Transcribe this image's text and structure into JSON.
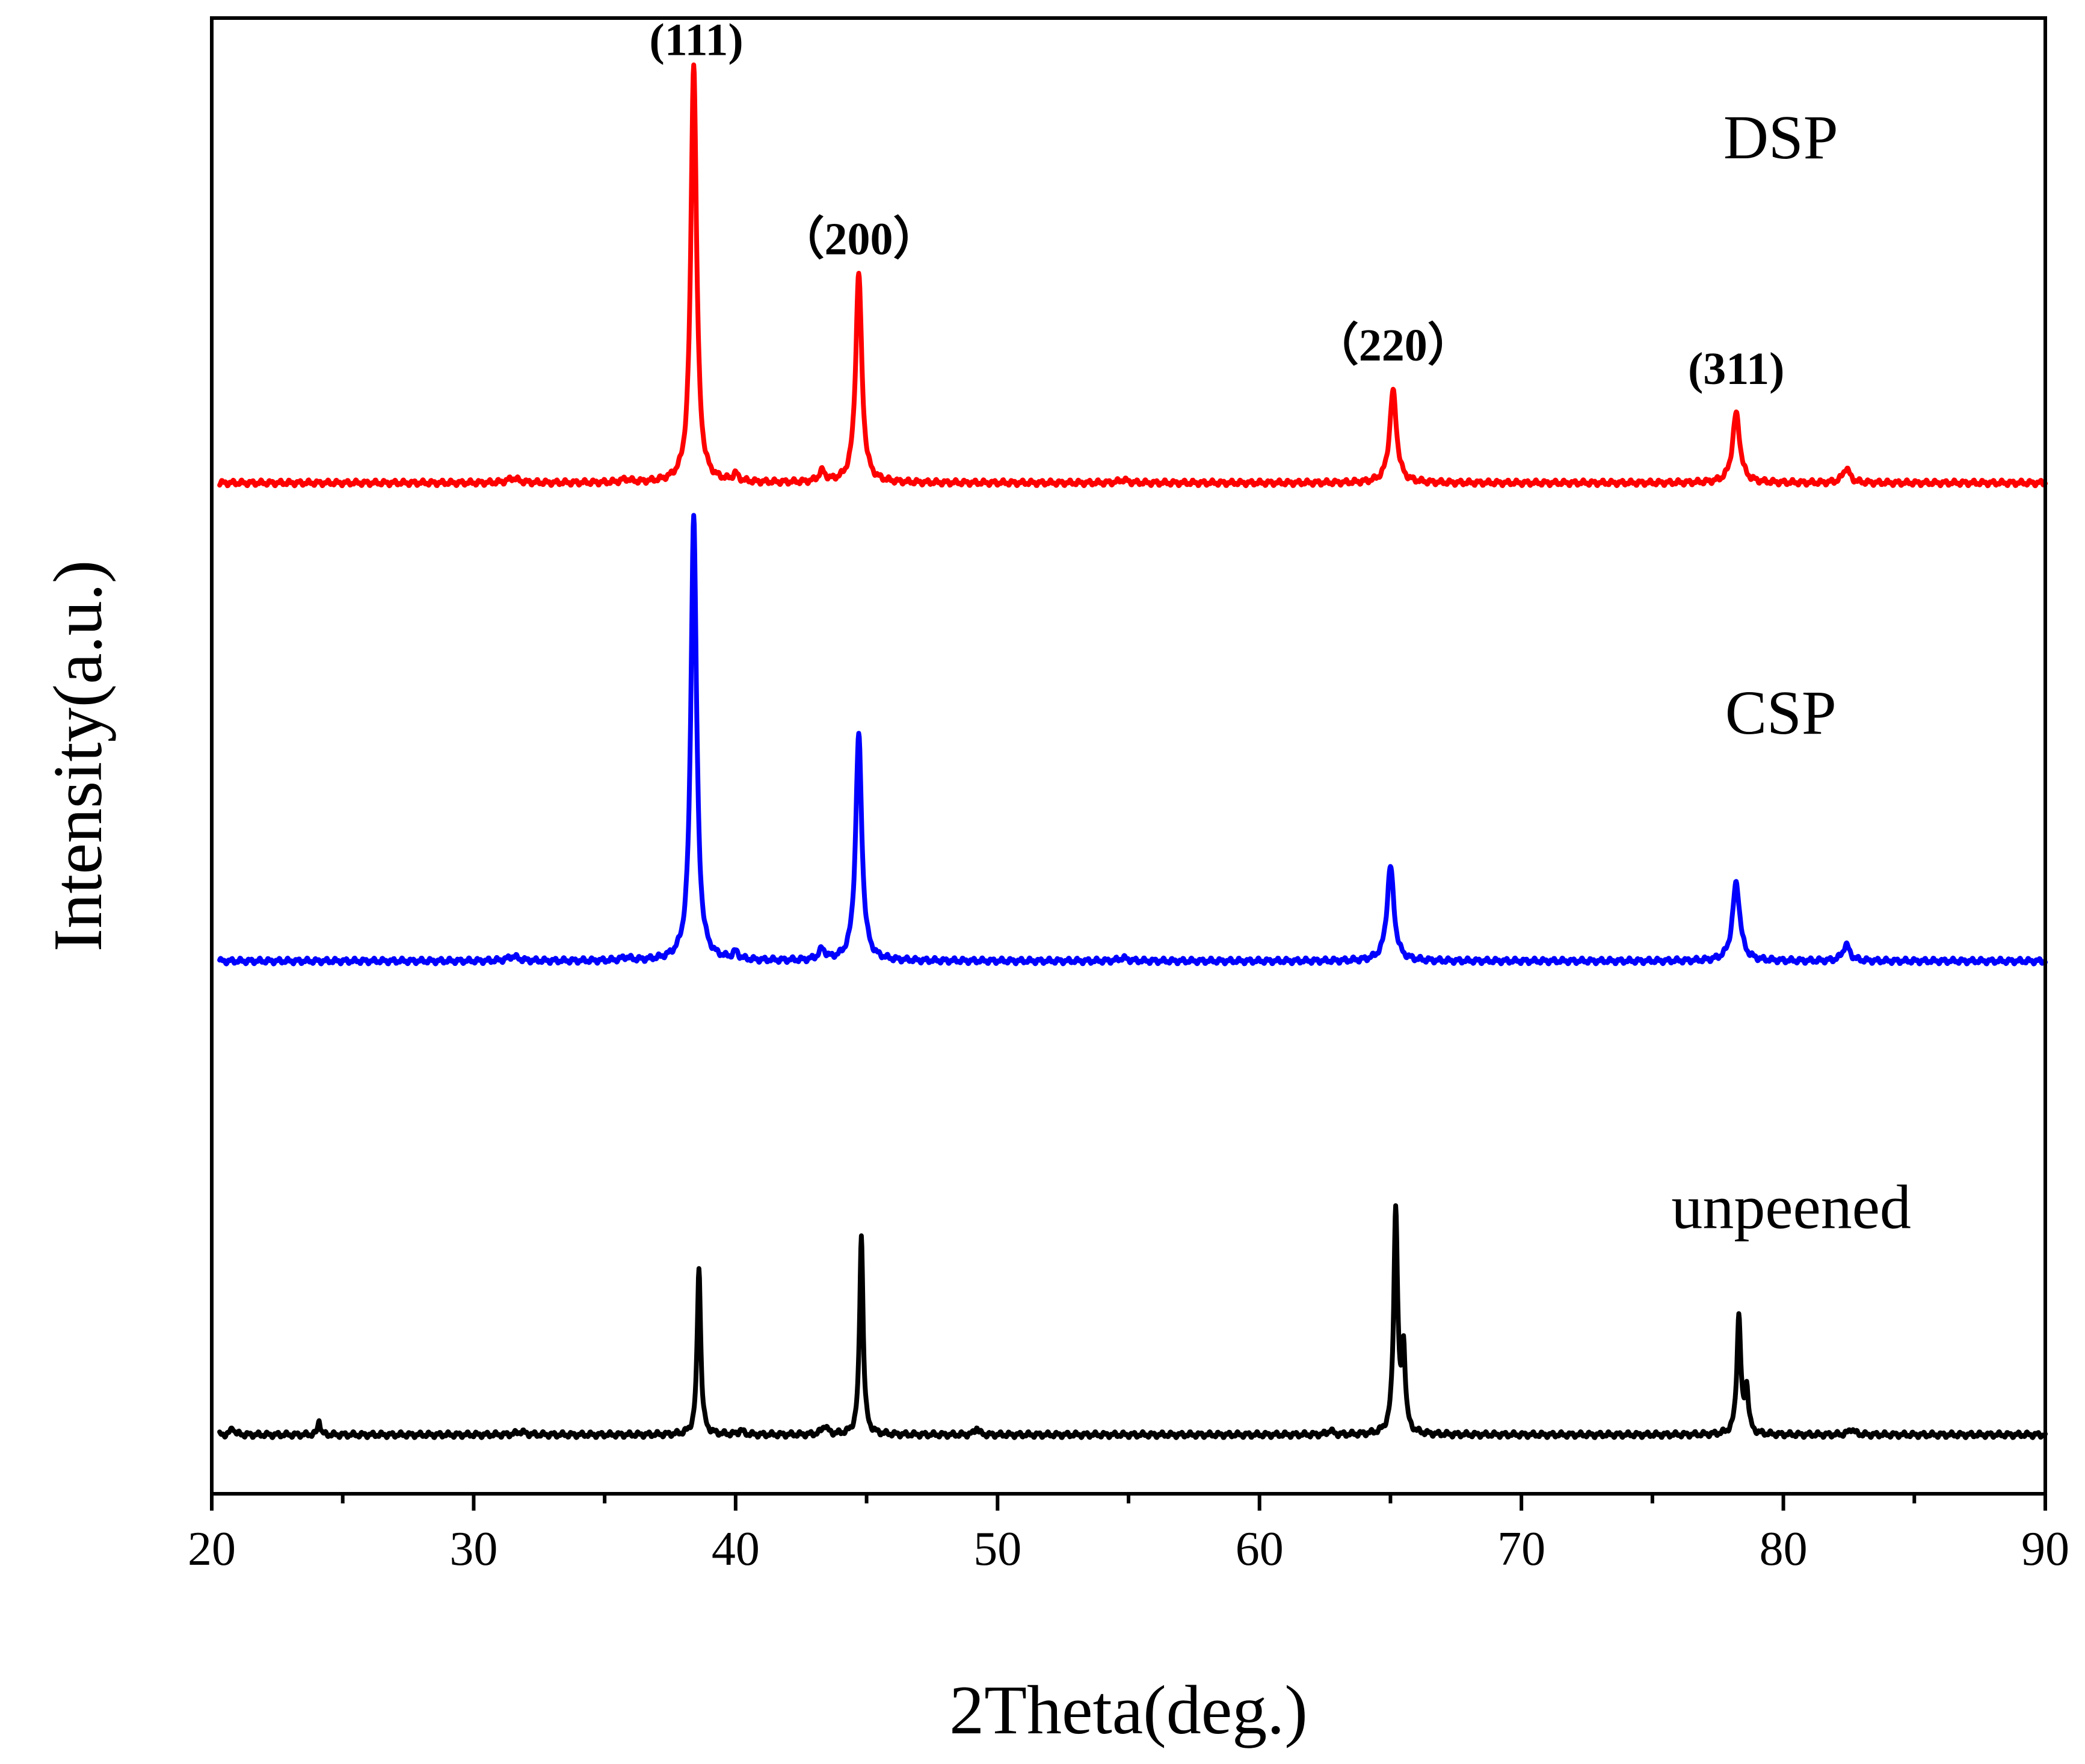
{
  "chart_data": {
    "type": "line",
    "title": "",
    "xlabel": "2Theta(deg.)",
    "ylabel": "Intensity(a.u.)",
    "xlim": [
      20,
      90
    ],
    "ylim": [
      0,
      1.0
    ],
    "x_major_ticks": [
      20,
      30,
      40,
      50,
      60,
      70,
      80,
      90
    ],
    "x_minor_ticks": [
      25,
      35,
      45,
      55,
      65,
      75,
      85
    ],
    "yticks_shown": false,
    "series": [
      {
        "name": "DSP",
        "color": "#ff0000",
        "baseline": 0.685,
        "peaks": [
          {
            "x": 38.4,
            "h": 0.285,
            "w": 0.13
          },
          {
            "x": 44.7,
            "h": 0.142,
            "w": 0.14
          },
          {
            "x": 65.1,
            "h": 0.062,
            "w": 0.16
          },
          {
            "x": 78.2,
            "h": 0.047,
            "w": 0.17
          },
          {
            "x": 82.4,
            "h": 0.01,
            "w": 0.16
          },
          {
            "x": 40.0,
            "h": 0.005,
            "w": 0.12
          },
          {
            "x": 43.3,
            "h": 0.007,
            "w": 0.15
          },
          {
            "x": 31.5,
            "h": 0.003,
            "w": 0.25
          },
          {
            "x": 35.8,
            "h": 0.002,
            "w": 0.2
          },
          {
            "x": 54.8,
            "h": 0.002,
            "w": 0.2
          }
        ]
      },
      {
        "name": "CSP",
        "color": "#0000ff",
        "baseline": 0.361,
        "peaks": [
          {
            "x": 38.4,
            "h": 0.302,
            "w": 0.13
          },
          {
            "x": 44.7,
            "h": 0.153,
            "w": 0.14
          },
          {
            "x": 65.0,
            "h": 0.064,
            "w": 0.16
          },
          {
            "x": 78.2,
            "h": 0.053,
            "w": 0.17
          },
          {
            "x": 82.4,
            "h": 0.011,
            "w": 0.16
          },
          {
            "x": 40.0,
            "h": 0.005,
            "w": 0.12
          },
          {
            "x": 43.3,
            "h": 0.007,
            "w": 0.15
          },
          {
            "x": 31.5,
            "h": 0.003,
            "w": 0.25
          },
          {
            "x": 35.8,
            "h": 0.002,
            "w": 0.2
          },
          {
            "x": 54.8,
            "h": 0.002,
            "w": 0.2
          }
        ]
      },
      {
        "name": "unpeened",
        "color": "#000000",
        "baseline": 0.04,
        "peaks": [
          {
            "x": 38.6,
            "h": 0.114,
            "w": 0.08
          },
          {
            "x": 44.8,
            "h": 0.136,
            "w": 0.08
          },
          {
            "x": 65.2,
            "h": 0.152,
            "w": 0.09
          },
          {
            "x": 65.5,
            "h": 0.055,
            "w": 0.08
          },
          {
            "x": 78.3,
            "h": 0.08,
            "w": 0.09
          },
          {
            "x": 78.6,
            "h": 0.03,
            "w": 0.08
          },
          {
            "x": 24.1,
            "h": 0.011,
            "w": 0.05
          },
          {
            "x": 20.8,
            "h": 0.005,
            "w": 0.08
          },
          {
            "x": 43.4,
            "h": 0.006,
            "w": 0.12
          },
          {
            "x": 49.2,
            "h": 0.005,
            "w": 0.08
          },
          {
            "x": 62.7,
            "h": 0.003,
            "w": 0.1
          },
          {
            "x": 82.6,
            "h": 0.004,
            "w": 0.12
          },
          {
            "x": 40.2,
            "h": 0.003,
            "w": 0.1
          },
          {
            "x": 31.8,
            "h": 0.002,
            "w": 0.2
          }
        ]
      }
    ],
    "series_labels": [
      {
        "text": "DSP",
        "x": 79.9,
        "y": 0.905
      },
      {
        "text": "CSP",
        "x": 79.9,
        "y": 0.515
      },
      {
        "text": "unpeened",
        "x": 80.3,
        "y": 0.18
      }
    ],
    "peak_annotations": [
      {
        "text": "(111)",
        "x": 38.5,
        "y": 0.975
      },
      {
        "text": "（200）",
        "x": 44.7,
        "y": 0.84
      },
      {
        "text": "（220）",
        "x": 65.1,
        "y": 0.768
      },
      {
        "text": "(311)",
        "x": 78.2,
        "y": 0.752
      }
    ]
  }
}
